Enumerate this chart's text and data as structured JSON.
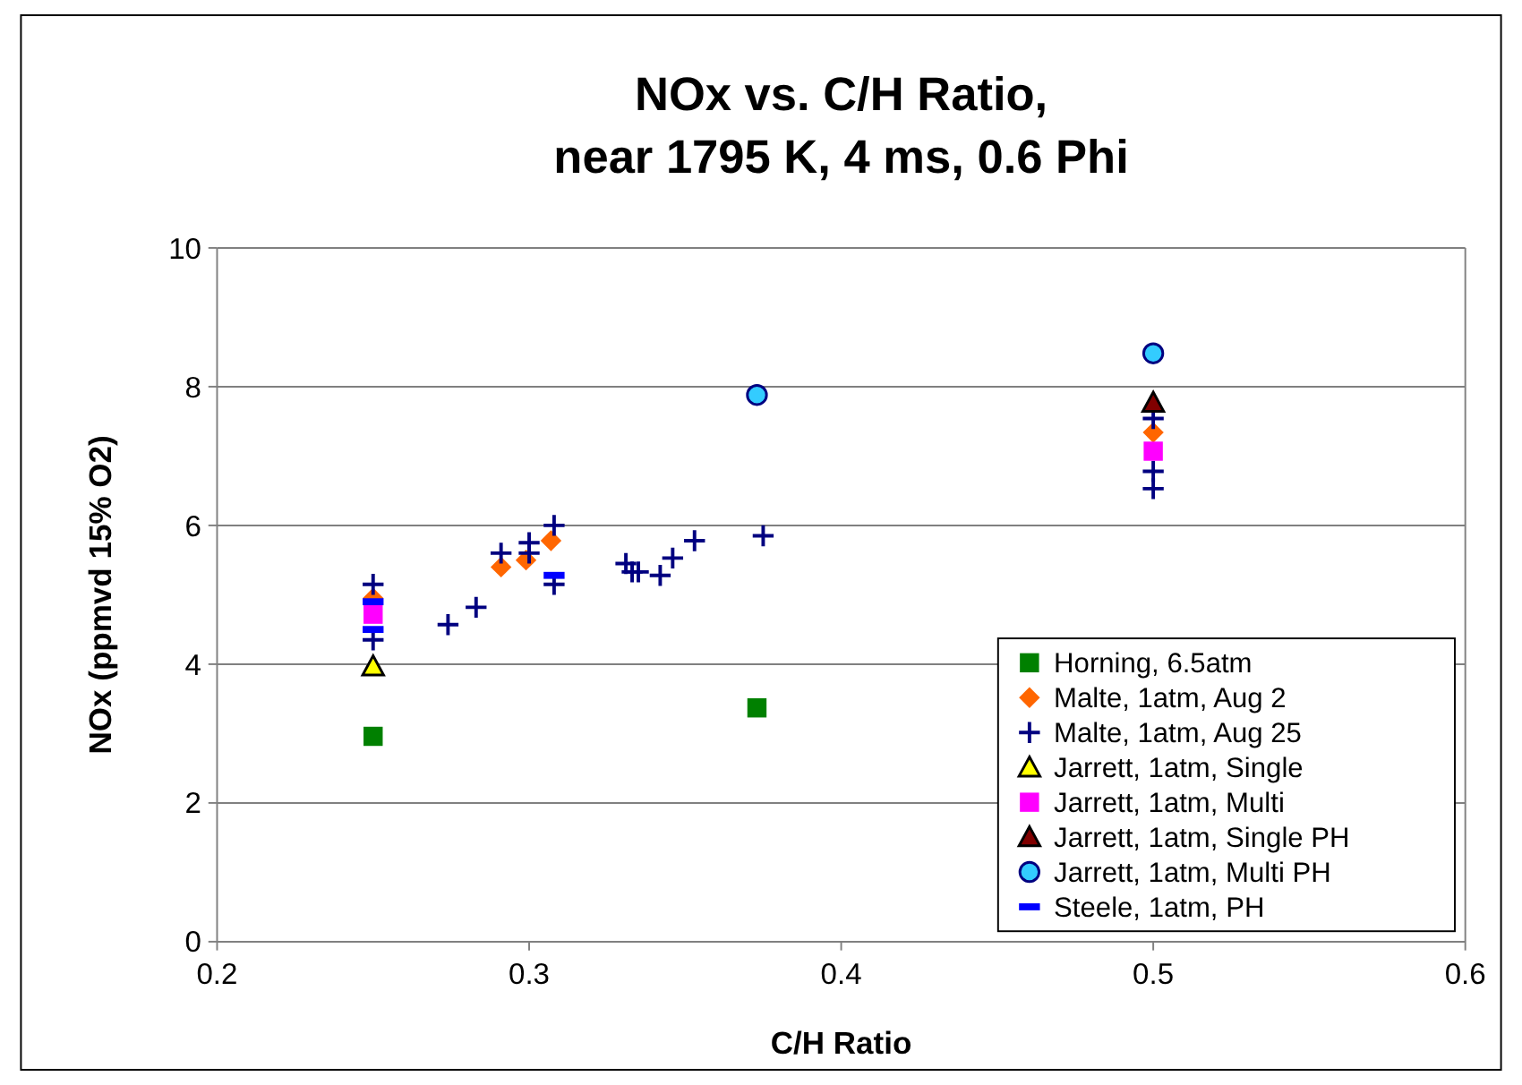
{
  "chart_data": {
    "type": "scatter",
    "title": "NOx vs. C/H Ratio,\nnear 1795 K, 4 ms, 0.6 Phi",
    "xlabel": "C/H Ratio",
    "ylabel": "NOx (ppmvd 15% O2)",
    "xlim": [
      0.2,
      0.6
    ],
    "xticks": [
      0.2,
      0.3,
      0.4,
      0.5,
      0.6
    ],
    "ylim": [
      0,
      10
    ],
    "yticks": [
      0,
      2,
      4,
      6,
      8,
      10
    ],
    "grid": "y",
    "legend": "bottom right",
    "series": [
      {
        "name": "Horning, 6.5atm",
        "color": "#008000",
        "marker": "square",
        "x": [
          0.25,
          0.373
        ],
        "values": [
          2.96,
          3.37
        ]
      },
      {
        "name": "Malte, 1atm, Aug 2",
        "color": "#ff6600",
        "marker": "diamond",
        "x": [
          0.25,
          0.291,
          0.299,
          0.307,
          0.5
        ],
        "values": [
          4.95,
          5.4,
          5.5,
          5.78,
          7.34
        ]
      },
      {
        "name": "Malte, 1atm, Aug 25",
        "color": "#000080",
        "marker": "cross",
        "x": [
          0.25,
          0.25,
          0.274,
          0.283,
          0.291,
          0.3,
          0.3,
          0.308,
          0.308,
          0.331,
          0.333,
          0.335,
          0.342,
          0.346,
          0.353,
          0.375,
          0.5,
          0.5,
          0.5
        ],
        "values": [
          5.15,
          4.35,
          4.57,
          4.82,
          5.6,
          5.75,
          5.6,
          6.0,
          5.15,
          5.45,
          5.33,
          5.33,
          5.28,
          5.53,
          5.78,
          5.85,
          7.54,
          6.78,
          6.53
        ]
      },
      {
        "name": "Jarrett, 1atm, Single",
        "color": "#ffff00",
        "marker": "triangle",
        "x": [
          0.25
        ],
        "values": [
          3.97
        ]
      },
      {
        "name": "Jarrett, 1atm, Multi",
        "color": "#ff00ff",
        "marker": "square",
        "x": [
          0.25,
          0.5
        ],
        "values": [
          4.72,
          7.07
        ]
      },
      {
        "name": "Jarrett, 1atm, Single PH",
        "color": "#800000",
        "marker": "triangle",
        "x": [
          0.5
        ],
        "values": [
          7.77
        ]
      },
      {
        "name": "Jarrett, 1atm, Multi PH",
        "color": "#33ccff",
        "marker": "circle",
        "x": [
          0.373,
          0.5
        ],
        "values": [
          7.88,
          8.48
        ]
      },
      {
        "name": "Steele, 1atm, PH",
        "color": "#0000ff",
        "x": [
          0.25,
          0.25,
          0.308
        ],
        "values": [
          4.9,
          4.5,
          5.28
        ]
      }
    ]
  }
}
